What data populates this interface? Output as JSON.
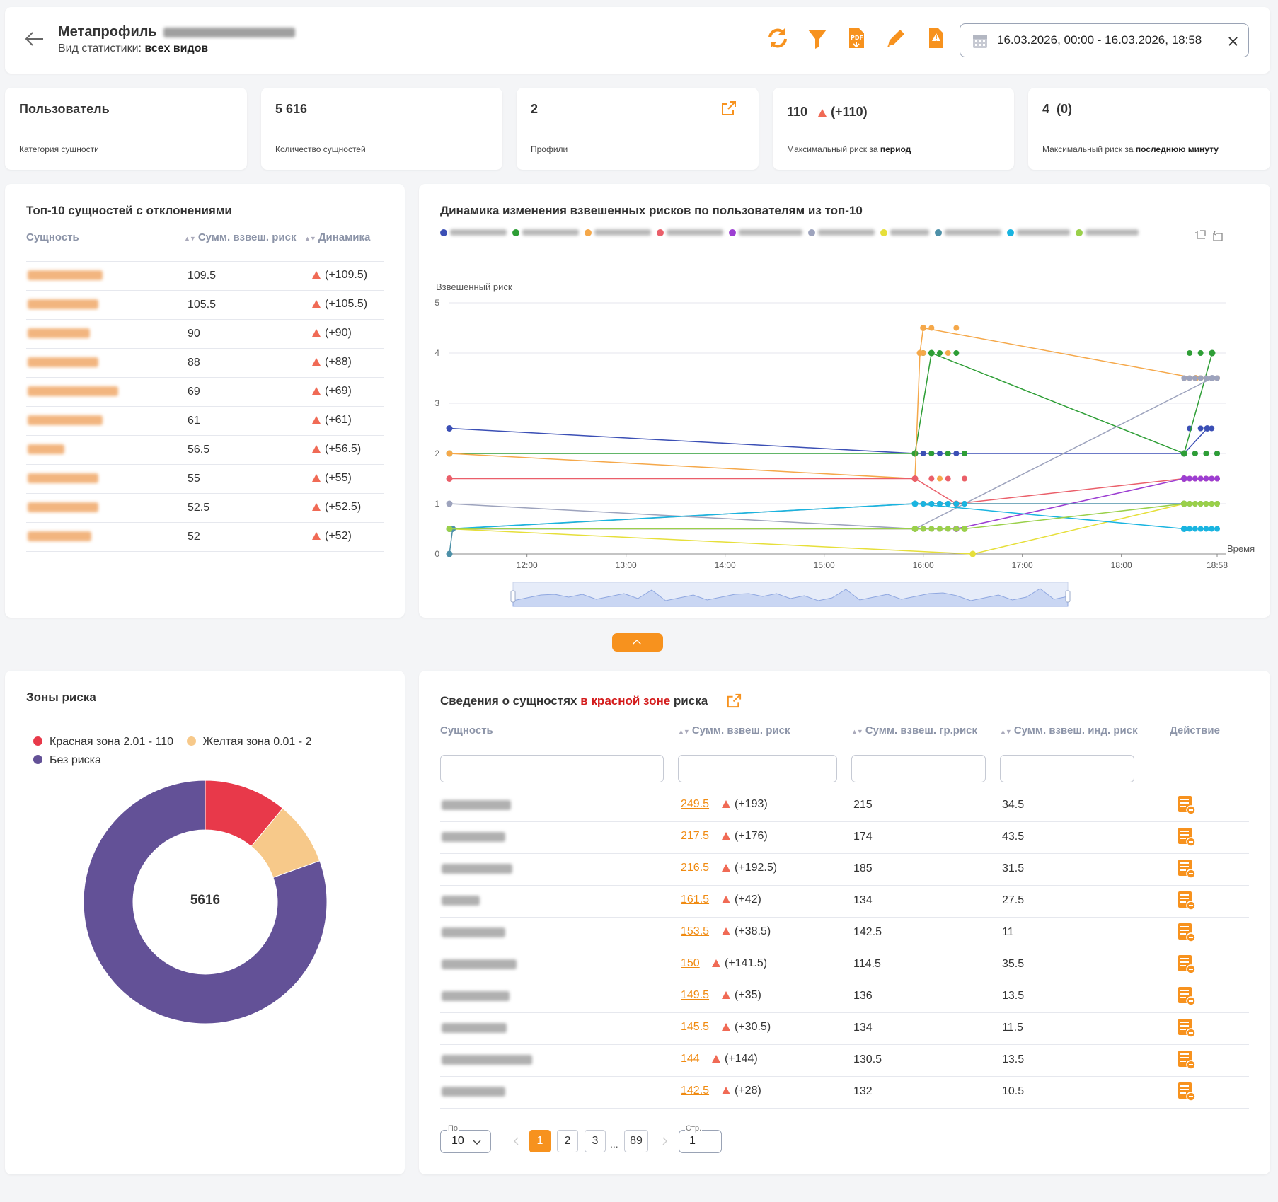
{
  "header": {
    "title": "Метапрофиль",
    "subtitle_prefix": "Вид статистики:",
    "subtitle_value": "всех видов",
    "date_range": "16.03.2026, 00:00 - 16.03.2026, 18:58",
    "accent_color": "#f7921e"
  },
  "kpis": [
    {
      "value": "Пользователь",
      "label": "Категория сущности"
    },
    {
      "value": "5 616",
      "label": "Количество сущностей"
    },
    {
      "value": "2",
      "label": "Профили"
    },
    {
      "value": "110",
      "delta": "(+110)",
      "label_prefix": "Максимальный риск за",
      "label_bold": "период"
    },
    {
      "value": "4  (0)",
      "label_prefix": "Максимальный риск за",
      "label_bold": "последнюю минуту"
    }
  ],
  "top10": {
    "title": "Топ-10 сущностей с отклонениями",
    "columns": [
      "Сущность",
      "Сумм. взвеш. риск",
      "Динамика"
    ],
    "rows": [
      {
        "risk": "109.5",
        "delta": "(+109.5)"
      },
      {
        "risk": "105.5",
        "delta": "(+105.5)"
      },
      {
        "risk": "90",
        "delta": "(+90)"
      },
      {
        "risk": "88",
        "delta": "(+88)"
      },
      {
        "risk": "69",
        "delta": "(+69)"
      },
      {
        "risk": "61",
        "delta": "(+61)"
      },
      {
        "risk": "56.5",
        "delta": "(+56.5)"
      },
      {
        "risk": "55",
        "delta": "(+55)"
      },
      {
        "risk": "52.5",
        "delta": "(+52.5)"
      },
      {
        "risk": "52",
        "delta": "(+52)"
      }
    ]
  },
  "dynamics_chart": {
    "title": "Динамика изменения взвешенных рисков по пользователям из топ-10",
    "ylabel": "Взвешенный риск",
    "xlabel": "Время",
    "y_ticks": [
      "0",
      "1",
      "2",
      "3",
      "4",
      "5"
    ],
    "x_ticks": [
      "12:00",
      "13:00",
      "14:00",
      "15:00",
      "16:00",
      "17:00",
      "18:00",
      "18:58"
    ],
    "series_colors": [
      "#3b4fb5",
      "#2e9e36",
      "#f5a84a",
      "#ea5f6a",
      "#9c3ed2",
      "#9da3bd",
      "#e6df3a",
      "#4d90a8",
      "#19b4e0",
      "#9ad04a"
    ]
  },
  "chart_data": {
    "type": "line",
    "ylabel": "Взвешенный риск",
    "xlabel": "Время",
    "ylim": [
      0,
      5
    ],
    "x_axis": [
      "11:13",
      "12:00",
      "13:00",
      "14:00",
      "15:00",
      "16:00",
      "17:00",
      "18:00",
      "18:58"
    ],
    "series": [
      {
        "color": "#3b4fb5",
        "points": [
          [
            "11:13",
            2.5
          ],
          [
            "15:55",
            2
          ],
          [
            "18:38",
            2
          ],
          [
            "18:52",
            2.5
          ]
        ]
      },
      {
        "color": "#2e9e36",
        "points": [
          [
            "11:13",
            2
          ],
          [
            "15:55",
            2
          ],
          [
            "16:05",
            4
          ],
          [
            "18:38",
            2
          ],
          [
            "18:55",
            4
          ]
        ]
      },
      {
        "color": "#f5a84a",
        "points": [
          [
            "11:13",
            2
          ],
          [
            "15:55",
            1.5
          ],
          [
            "15:58",
            4
          ],
          [
            "16:00",
            4.5
          ],
          [
            "18:45",
            3.5
          ]
        ]
      },
      {
        "color": "#ea5f6a",
        "points": [
          [
            "11:13",
            1.5
          ],
          [
            "15:55",
            1.5
          ],
          [
            "16:20",
            1
          ],
          [
            "18:38",
            1.5
          ]
        ]
      },
      {
        "color": "#9c3ed2",
        "points": [
          [
            "11:13",
            0.5
          ],
          [
            "16:20",
            0.5
          ],
          [
            "18:38",
            1.5
          ]
        ]
      },
      {
        "color": "#9da3bd",
        "points": [
          [
            "11:13",
            1
          ],
          [
            "15:55",
            0.5
          ],
          [
            "18:55",
            3.5
          ]
        ]
      },
      {
        "color": "#e6df3a",
        "points": [
          [
            "11:13",
            0.5
          ],
          [
            "16:30",
            0
          ],
          [
            "18:38",
            1
          ]
        ]
      },
      {
        "color": "#4d90a8",
        "points": [
          [
            "11:13",
            0
          ],
          [
            "11:15",
            0.5
          ],
          [
            "15:55",
            1
          ],
          [
            "18:38",
            1
          ]
        ]
      },
      {
        "color": "#19b4e0",
        "points": [
          [
            "11:13",
            0.5
          ],
          [
            "15:55",
            1
          ],
          [
            "18:38",
            0.5
          ]
        ]
      },
      {
        "color": "#9ad04a",
        "points": [
          [
            "11:13",
            0.5
          ],
          [
            "15:55",
            0.5
          ],
          [
            "16:25",
            0.5
          ],
          [
            "18:38",
            1
          ]
        ]
      }
    ]
  },
  "zones": {
    "title": "Зоны риска",
    "legend": [
      {
        "label": "Красная зона 2.01 - 110",
        "color": "#e8394a"
      },
      {
        "label": "Желтая зона 0.01 - 2",
        "color": "#f7c98a"
      },
      {
        "label": "Без риска",
        "color": "#635197"
      }
    ],
    "center_label": "5616"
  },
  "donut_data": {
    "type": "pie",
    "total": 5616,
    "slices": [
      {
        "label": "Красная зона 2.01 - 110",
        "fraction": 0.11,
        "color": "#e8394a"
      },
      {
        "label": "Желтая зона 0.01 - 2",
        "fraction": 0.085,
        "color": "#f7c98a"
      },
      {
        "label": "Без риска",
        "fraction": 0.805,
        "color": "#635197"
      }
    ]
  },
  "red_zone": {
    "title_prefix": "Сведения о сущностях",
    "title_red": "в красной зоне",
    "title_suffix": "риска",
    "columns": [
      "Сущность",
      "Сумм. взвеш. риск",
      "Сумм. взвеш. гр.риск",
      "Сумм. взвеш. инд. риск",
      "Действие"
    ],
    "rows": [
      {
        "risk": "249.5",
        "delta": "(+193)",
        "group": "215",
        "ind": "34.5"
      },
      {
        "risk": "217.5",
        "delta": "(+176)",
        "group": "174",
        "ind": "43.5"
      },
      {
        "risk": "216.5",
        "delta": "(+192.5)",
        "group": "185",
        "ind": "31.5"
      },
      {
        "risk": "161.5",
        "delta": "(+42)",
        "group": "134",
        "ind": "27.5"
      },
      {
        "risk": "153.5",
        "delta": "(+38.5)",
        "group": "142.5",
        "ind": "11"
      },
      {
        "risk": "150",
        "delta": "(+141.5)",
        "group": "114.5",
        "ind": "35.5"
      },
      {
        "risk": "149.5",
        "delta": "(+35)",
        "group": "136",
        "ind": "13.5"
      },
      {
        "risk": "145.5",
        "delta": "(+30.5)",
        "group": "134",
        "ind": "11.5"
      },
      {
        "risk": "144",
        "delta": "(+144)",
        "group": "130.5",
        "ind": "13.5"
      },
      {
        "risk": "142.5",
        "delta": "(+28)",
        "group": "132",
        "ind": "10.5"
      }
    ],
    "pagination": {
      "per_page_label": "По",
      "per_page_value": "10",
      "pages": [
        "1",
        "2",
        "3",
        "89"
      ],
      "ellipsis": "...",
      "page_field_label": "Стр.",
      "page_field_value": "1"
    }
  }
}
